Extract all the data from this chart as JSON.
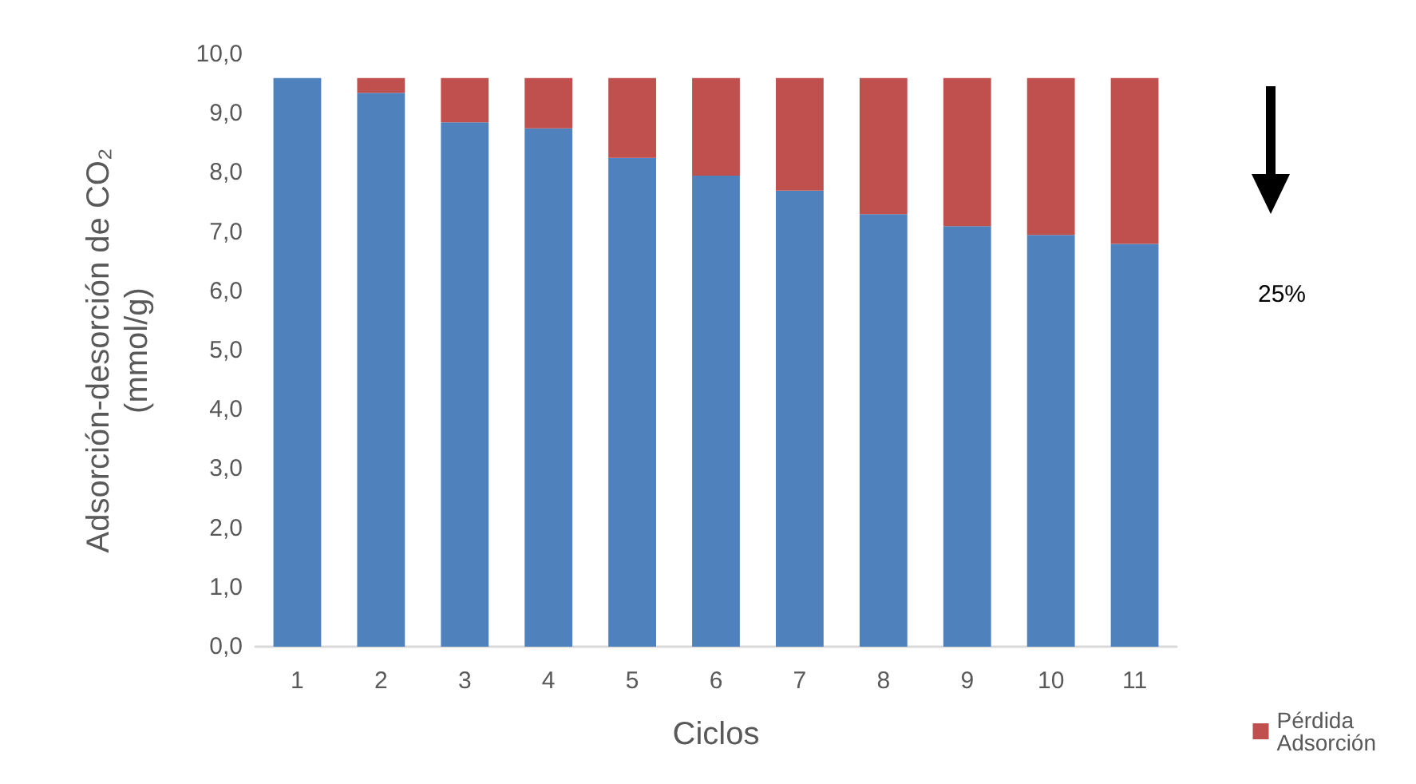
{
  "chart_data": {
    "type": "bar",
    "stacked": true,
    "xlabel": "Ciclos",
    "ylabel": "Adsorción-desorción de CO₂\n(mmol/g)",
    "categories": [
      "1",
      "2",
      "3",
      "4",
      "5",
      "6",
      "7",
      "8",
      "9",
      "10",
      "11"
    ],
    "series": [
      {
        "color": "#4f81bd",
        "values": [
          9.6,
          9.35,
          8.85,
          8.75,
          8.25,
          7.95,
          7.7,
          7.3,
          7.1,
          6.95,
          6.8
        ]
      },
      {
        "name": "Pérdida Adsorción",
        "color": "#c0504d",
        "values": [
          0,
          0.25,
          0.75,
          0.85,
          1.35,
          1.65,
          1.9,
          2.3,
          2.5,
          2.65,
          2.8
        ]
      }
    ],
    "ylim": [
      0,
      10
    ],
    "yticks": [
      {
        "value": 0,
        "label": "0,0"
      },
      {
        "value": 1,
        "label": "1,0"
      },
      {
        "value": 2,
        "label": "2,0"
      },
      {
        "value": 3,
        "label": "3,0"
      },
      {
        "value": 4,
        "label": "4,0"
      },
      {
        "value": 5,
        "label": "5,0"
      },
      {
        "value": 6,
        "label": "6,0"
      },
      {
        "value": 7,
        "label": "7,0"
      },
      {
        "value": 8,
        "label": "8,0"
      },
      {
        "value": 9,
        "label": "9,0"
      },
      {
        "value": 10,
        "label": "10,0"
      }
    ],
    "annotations": [
      "25%"
    ],
    "grid": false,
    "legend": "bottom right"
  }
}
